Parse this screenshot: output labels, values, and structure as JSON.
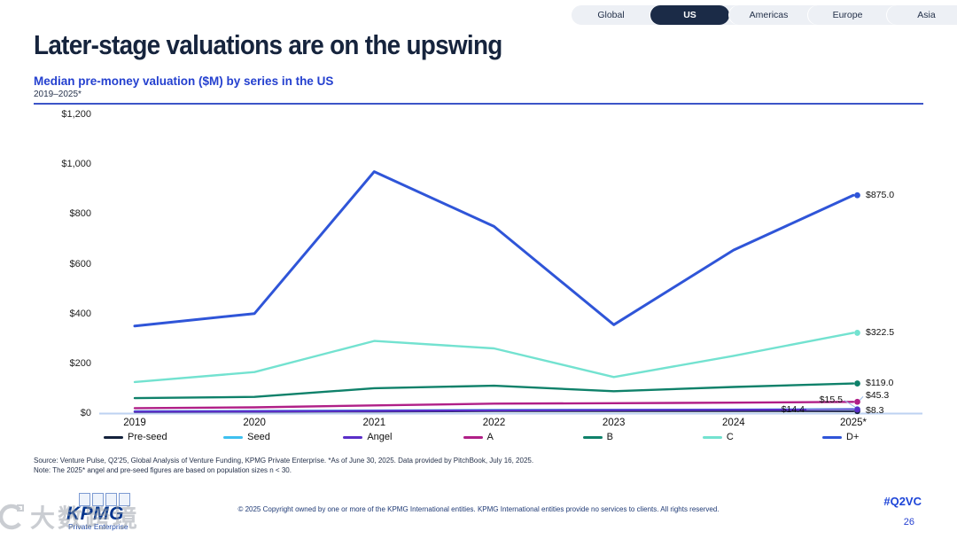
{
  "tabs": {
    "items": [
      {
        "label": "Global",
        "active": false
      },
      {
        "label": "US",
        "active": true
      },
      {
        "label": "Americas",
        "active": false
      },
      {
        "label": "Europe",
        "active": false
      },
      {
        "label": "Asia",
        "active": false
      }
    ]
  },
  "header": {
    "title": "Later-stage valuations are on the upswing",
    "subtitle": "Median pre-money valuation ($M) by series in the US",
    "period": "2019–2025*"
  },
  "chart_data": {
    "type": "line",
    "title": "Median pre-money valuation ($M) by series in the US",
    "xlabel": "",
    "ylabel": "Median pre-money valuation ($M)",
    "x": [
      "2019",
      "2020",
      "2021",
      "2022",
      "2023",
      "2024",
      "2025*"
    ],
    "ylim": [
      0,
      1200
    ],
    "y_ticks": [
      "$1,200",
      "$1,000",
      "$800",
      "$600",
      "$400",
      "$200",
      "$0"
    ],
    "y_tick_values": [
      1200,
      1000,
      800,
      600,
      400,
      200,
      0
    ],
    "grid": false,
    "legend_position": "bottom",
    "series": [
      {
        "name": "Pre-seed",
        "color": "#14223c",
        "values": [
          5.5,
          6.0,
          7.0,
          8.5,
          9.0,
          9.0,
          8.3
        ],
        "end_label": "$8.3",
        "label_placement": "right",
        "estimated_except_last": true
      },
      {
        "name": "Seed",
        "color": "#3ec0f0",
        "values": [
          7.5,
          8.5,
          10.5,
          12.5,
          13.0,
          14.0,
          15.5
        ],
        "end_label": "$15.5",
        "label_placement": "left",
        "estimated_except_last": true
      },
      {
        "name": "Angel",
        "color": "#5a2ec8",
        "values": [
          6.0,
          7.0,
          9.0,
          11.0,
          12.0,
          13.0,
          14.4
        ],
        "end_label": "$14.4",
        "label_placement": "far-left",
        "estimated_except_last": true
      },
      {
        "name": "A",
        "color": "#b01f87",
        "values": [
          20.0,
          23.0,
          31.0,
          38.0,
          40.0,
          42.0,
          45.3
        ],
        "end_label": "$45.3",
        "label_placement": "right-up",
        "estimated_except_last": true
      },
      {
        "name": "B",
        "color": "#0f816a",
        "values": [
          60.0,
          65.0,
          100.0,
          110.0,
          88.0,
          105.0,
          119.0
        ],
        "end_label": "$119.0",
        "label_placement": "right",
        "estimated_except_last": true
      },
      {
        "name": "C",
        "color": "#73e2d0",
        "values": [
          125.0,
          165.0,
          290.0,
          260.0,
          145.0,
          230.0,
          322.5
        ],
        "end_label": "$322.5",
        "label_placement": "right",
        "estimated_except_last": true
      },
      {
        "name": "D+",
        "color": "#2f55d8",
        "values": [
          350.0,
          400.0,
          970.0,
          750.0,
          355.0,
          655.0,
          875.0
        ],
        "end_label": "$875.0",
        "label_placement": "right",
        "estimated_except_last": true
      }
    ]
  },
  "footnotes": {
    "source": "Source: Venture Pulse, Q2'25, Global Analysis of Venture Funding, KPMG Private Enterprise. *As of June 30, 2025. Data provided by PitchBook, July 16, 2025.",
    "note": "Note: The 2025* angel and pre-seed figures are based on population sizes n < 30."
  },
  "footer": {
    "copyright": "© 2025 Copyright owned by one or more of the KPMG International entities. KPMG International entities provide no services to clients. All rights reserved.",
    "hashtag": "#Q2VC",
    "page": "26",
    "brand": "KPMG",
    "brand_sub": "Private Enterprise"
  },
  "watermark": {
    "text": "大数跨境"
  }
}
